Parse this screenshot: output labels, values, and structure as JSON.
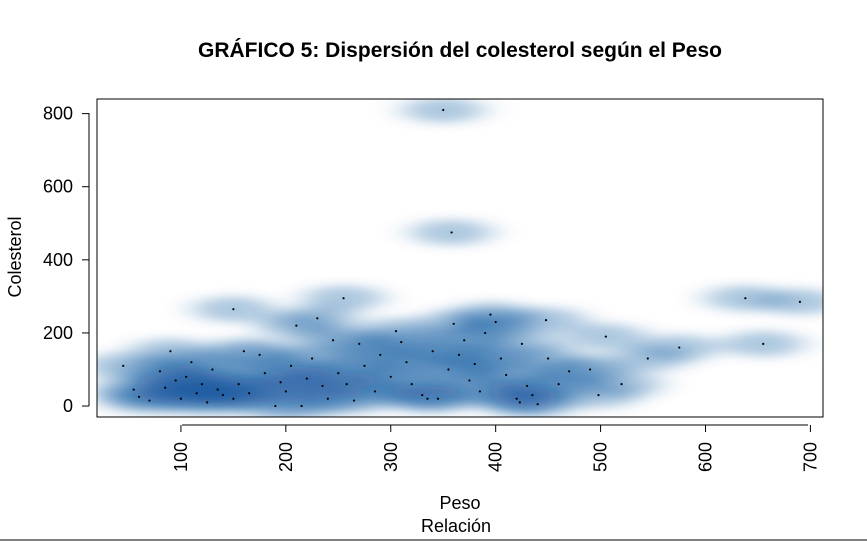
{
  "chart_data": {
    "type": "scatter",
    "subtype": "smoothed-density-scatter",
    "title": "GRÁFICO 5: Dispersión del colesterol según el Peso",
    "xlabel": "Peso",
    "xlabel2": "Relación",
    "ylabel": "Colesterol",
    "xlim": [
      20,
      712
    ],
    "ylim": [
      -30,
      840
    ],
    "x_ticks": [
      "100",
      "200",
      "300",
      "400",
      "500",
      "600",
      "700"
    ],
    "y_ticks": [
      "0",
      "200",
      "400",
      "600",
      "800"
    ],
    "colors": {
      "density": "#08519c",
      "point": "#000000"
    },
    "points": [
      {
        "x": 45,
        "y": 110
      },
      {
        "x": 55,
        "y": 45
      },
      {
        "x": 60,
        "y": 25
      },
      {
        "x": 70,
        "y": 15
      },
      {
        "x": 80,
        "y": 95
      },
      {
        "x": 85,
        "y": 50
      },
      {
        "x": 90,
        "y": 150
      },
      {
        "x": 95,
        "y": 70
      },
      {
        "x": 100,
        "y": 20
      },
      {
        "x": 105,
        "y": 80
      },
      {
        "x": 110,
        "y": 120
      },
      {
        "x": 115,
        "y": 35
      },
      {
        "x": 120,
        "y": 60
      },
      {
        "x": 125,
        "y": 10
      },
      {
        "x": 130,
        "y": 100
      },
      {
        "x": 135,
        "y": 45
      },
      {
        "x": 140,
        "y": 30
      },
      {
        "x": 150,
        "y": 265
      },
      {
        "x": 150,
        "y": 20
      },
      {
        "x": 155,
        "y": 60
      },
      {
        "x": 160,
        "y": 150
      },
      {
        "x": 165,
        "y": 35
      },
      {
        "x": 175,
        "y": 140
      },
      {
        "x": 180,
        "y": 90
      },
      {
        "x": 190,
        "y": 0
      },
      {
        "x": 195,
        "y": 65
      },
      {
        "x": 200,
        "y": 40
      },
      {
        "x": 205,
        "y": 110
      },
      {
        "x": 210,
        "y": 220
      },
      {
        "x": 215,
        "y": 0
      },
      {
        "x": 220,
        "y": 75
      },
      {
        "x": 225,
        "y": 130
      },
      {
        "x": 230,
        "y": 240
      },
      {
        "x": 235,
        "y": 55
      },
      {
        "x": 240,
        "y": 20
      },
      {
        "x": 245,
        "y": 180
      },
      {
        "x": 250,
        "y": 90
      },
      {
        "x": 255,
        "y": 295
      },
      {
        "x": 258,
        "y": 60
      },
      {
        "x": 265,
        "y": 15
      },
      {
        "x": 270,
        "y": 170
      },
      {
        "x": 275,
        "y": 110
      },
      {
        "x": 285,
        "y": 40
      },
      {
        "x": 290,
        "y": 140
      },
      {
        "x": 300,
        "y": 80
      },
      {
        "x": 305,
        "y": 205
      },
      {
        "x": 310,
        "y": 175
      },
      {
        "x": 315,
        "y": 120
      },
      {
        "x": 320,
        "y": 60
      },
      {
        "x": 330,
        "y": 30
      },
      {
        "x": 335,
        "y": 20
      },
      {
        "x": 340,
        "y": 150
      },
      {
        "x": 345,
        "y": 20
      },
      {
        "x": 350,
        "y": 810
      },
      {
        "x": 355,
        "y": 100
      },
      {
        "x": 358,
        "y": 475
      },
      {
        "x": 360,
        "y": 225
      },
      {
        "x": 365,
        "y": 140
      },
      {
        "x": 370,
        "y": 180
      },
      {
        "x": 375,
        "y": 70
      },
      {
        "x": 380,
        "y": 115
      },
      {
        "x": 385,
        "y": 40
      },
      {
        "x": 390,
        "y": 200
      },
      {
        "x": 395,
        "y": 250
      },
      {
        "x": 400,
        "y": 230
      },
      {
        "x": 405,
        "y": 130
      },
      {
        "x": 410,
        "y": 85
      },
      {
        "x": 420,
        "y": 20
      },
      {
        "x": 423,
        "y": 10
      },
      {
        "x": 425,
        "y": 170
      },
      {
        "x": 430,
        "y": 55
      },
      {
        "x": 435,
        "y": 30
      },
      {
        "x": 440,
        "y": 5
      },
      {
        "x": 448,
        "y": 235
      },
      {
        "x": 450,
        "y": 130
      },
      {
        "x": 460,
        "y": 60
      },
      {
        "x": 470,
        "y": 95
      },
      {
        "x": 490,
        "y": 100
      },
      {
        "x": 498,
        "y": 30
      },
      {
        "x": 505,
        "y": 190
      },
      {
        "x": 520,
        "y": 60
      },
      {
        "x": 545,
        "y": 130
      },
      {
        "x": 575,
        "y": 160
      },
      {
        "x": 638,
        "y": 295
      },
      {
        "x": 655,
        "y": 170
      },
      {
        "x": 690,
        "y": 285
      }
    ]
  }
}
